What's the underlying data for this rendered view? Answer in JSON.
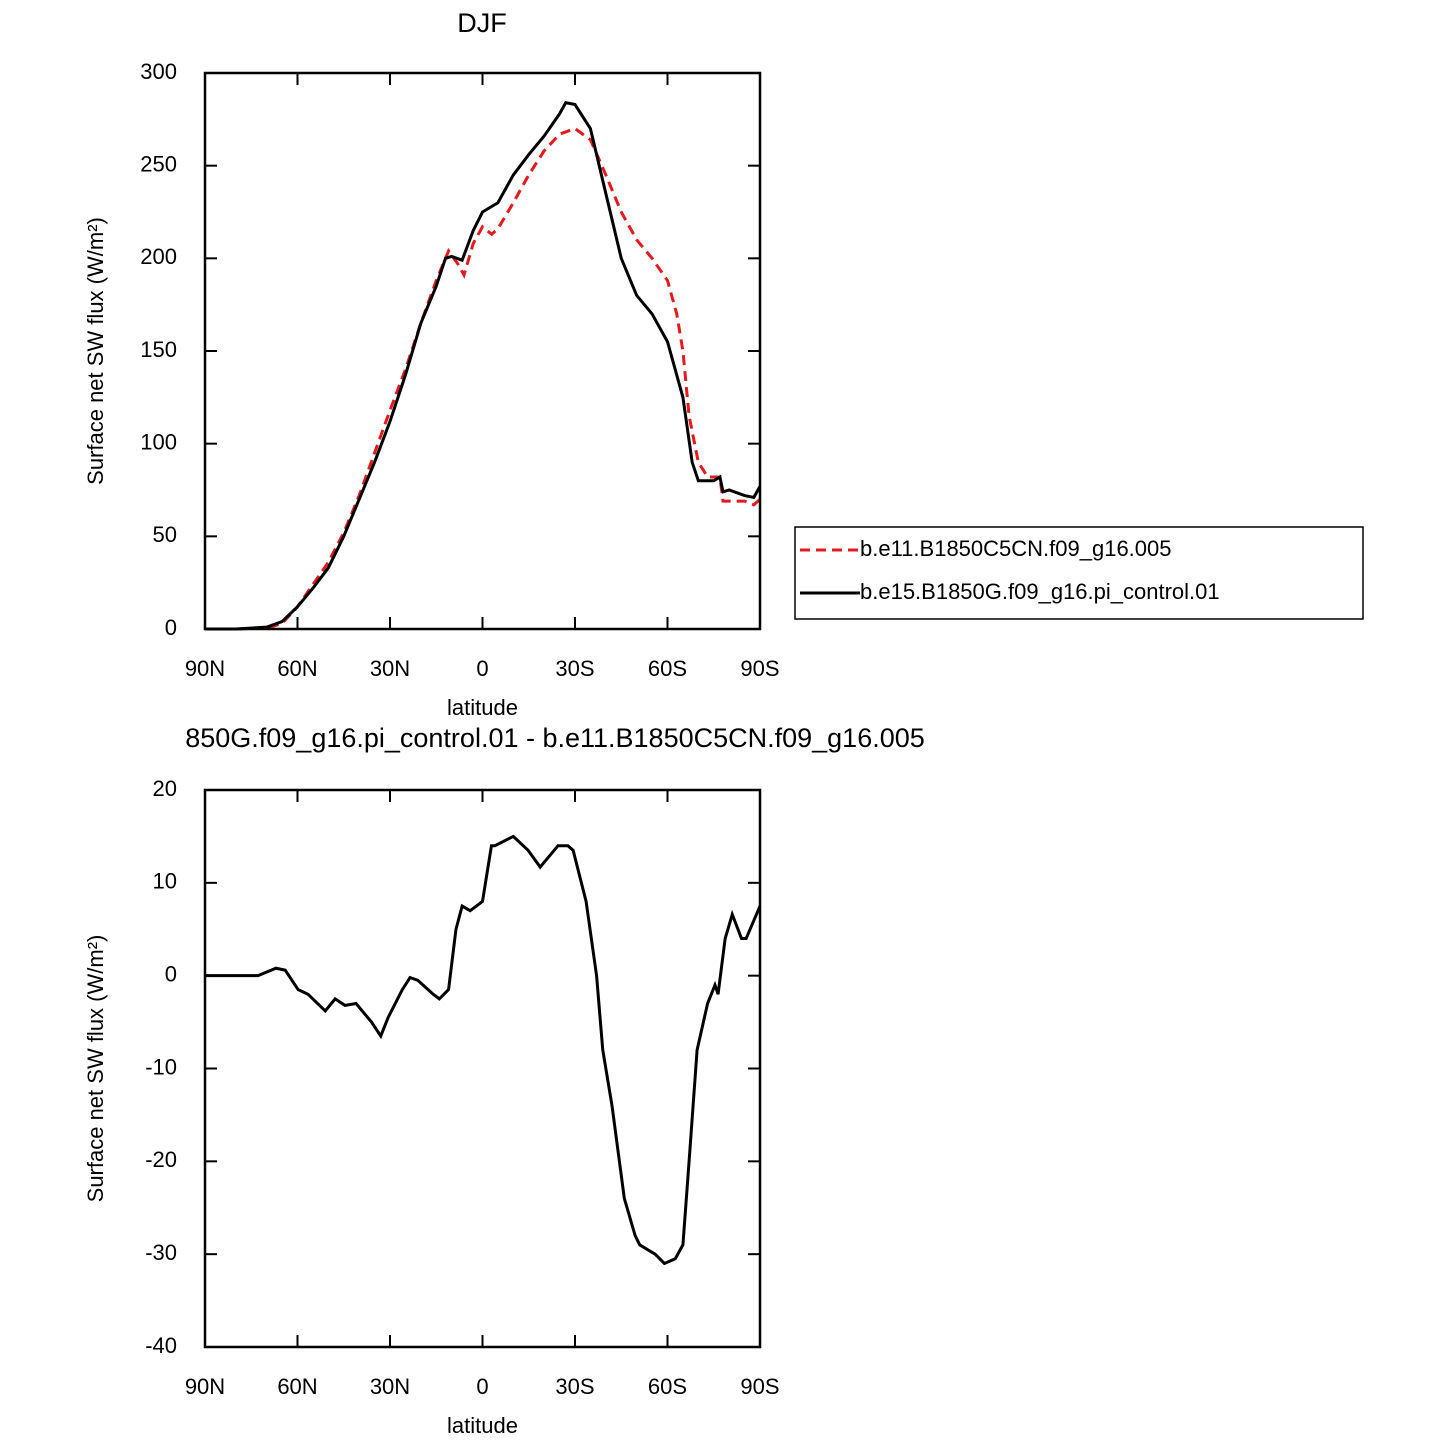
{
  "chart_data": [
    {
      "type": "line",
      "title": "DJF",
      "xlabel": "latitude",
      "ylabel": "Surface net SW flux (W/m²)",
      "xlim": [
        90,
        -90
      ],
      "ylim": [
        0,
        300
      ],
      "xticks": [
        {
          "value": 90,
          "label": "90N"
        },
        {
          "value": 60,
          "label": "60N"
        },
        {
          "value": 30,
          "label": "30N"
        },
        0,
        {
          "value": -30,
          "label": "30S"
        },
        {
          "value": -60,
          "label": "60S"
        },
        {
          "value": -90,
          "label": "90S"
        }
      ],
      "yticks": [
        0,
        50,
        100,
        150,
        200,
        250,
        300
      ],
      "legend": "outside right",
      "series": [
        {
          "name": "b.e11.B1850C5CN.f09_g16.005",
          "color": "#e41a1c",
          "style": "dashed",
          "x": [
            90,
            80,
            70,
            65,
            60,
            55,
            50,
            45,
            40,
            35,
            30,
            25,
            20,
            15,
            11,
            8,
            6,
            3,
            0,
            -3,
            -5,
            -10,
            -15,
            -20,
            -25,
            -30,
            -35,
            -40,
            -45,
            -50,
            -55,
            -60,
            -63,
            -65,
            -67,
            -70,
            -73,
            -77,
            -78,
            -80,
            -85,
            -88,
            -90
          ],
          "values": [
            0,
            0,
            0.5,
            3,
            12,
            24,
            36,
            52,
            72,
            95,
            118,
            140,
            165,
            188,
            204,
            197,
            191,
            208,
            217,
            213,
            216,
            230,
            245,
            258,
            267,
            270,
            264,
            245,
            225,
            210,
            200,
            188,
            170,
            150,
            115,
            90,
            82,
            82,
            69,
            69,
            69,
            67,
            70
          ]
        },
        {
          "name": "b.e15.B1850G.f09_g16.pi_control.01",
          "color": "#000000",
          "style": "solid",
          "x": [
            90,
            80,
            70,
            65,
            60,
            55,
            50,
            45,
            40,
            35,
            30,
            25,
            20,
            15,
            12,
            10,
            6.6,
            3,
            0,
            -5,
            -10,
            -15,
            -20,
            -25,
            -27,
            -30,
            -35,
            -40,
            -45,
            -50,
            -55,
            -60,
            -65,
            -68,
            -70,
            -75,
            -77,
            -78,
            -80,
            -85,
            -88,
            -90
          ],
          "values": [
            0,
            0,
            1,
            4,
            12,
            22,
            33,
            50,
            70,
            90,
            112,
            137,
            165,
            185,
            200,
            201,
            199,
            215,
            225,
            230,
            245,
            256,
            266,
            278,
            284,
            283,
            270,
            235,
            200,
            180,
            170,
            155,
            125,
            90,
            80,
            80,
            82,
            74,
            75,
            72,
            71,
            77
          ]
        }
      ]
    },
    {
      "type": "line",
      "title": "850G.f09_g16.pi_control.01 - b.e11.B1850C5CN.f09_g16.005",
      "xlabel": "latitude",
      "ylabel": "Surface net SW flux (W/m²)",
      "xlim": [
        90,
        -90
      ],
      "ylim": [
        -40,
        20
      ],
      "xticks": [
        {
          "value": 90,
          "label": "90N"
        },
        {
          "value": 60,
          "label": "60N"
        },
        {
          "value": 30,
          "label": "30N"
        },
        0,
        {
          "value": -30,
          "label": "30S"
        },
        {
          "value": -60,
          "label": "60S"
        },
        {
          "value": -90,
          "label": "90S"
        }
      ],
      "yticks": [
        -40,
        -30,
        -20,
        -10,
        0,
        10,
        20
      ],
      "series": [
        {
          "color": "#000000",
          "style": "solid",
          "x": [
            90,
            72.8,
            67,
            64,
            59.8,
            56.6,
            51,
            47.8,
            44.6,
            41,
            36,
            33,
            30.6,
            26,
            23.5,
            21,
            16,
            14,
            11,
            8.6,
            6.6,
            4,
            0,
            -2.9,
            -4,
            -7,
            -10,
            -14.8,
            -18.7,
            -24.5,
            -27.7,
            -29.4,
            -33.6,
            -37,
            -39,
            -42,
            -46,
            -49.5,
            -51,
            -56,
            -59,
            -62.5,
            -65,
            -67,
            -69.6,
            -73,
            -75.4,
            -76.4,
            -78.7,
            -81,
            -84,
            -85.5,
            -90
          ],
          "values": [
            0,
            0,
            0.8,
            0.6,
            -1.5,
            -2,
            -3.8,
            -2.5,
            -3.2,
            -3,
            -5,
            -6.5,
            -4.5,
            -1.5,
            -0.2,
            -0.5,
            -2,
            -2.5,
            -1.5,
            5,
            7.5,
            7,
            8,
            14,
            14,
            14.5,
            15,
            13.5,
            11.7,
            14,
            14,
            13.5,
            8,
            0,
            -8,
            -14,
            -24,
            -28,
            -29,
            -30,
            -31,
            -30.5,
            -29,
            -20,
            -8,
            -3,
            -1,
            -2,
            4,
            6.6,
            4,
            4,
            7.5
          ]
        }
      ]
    }
  ]
}
